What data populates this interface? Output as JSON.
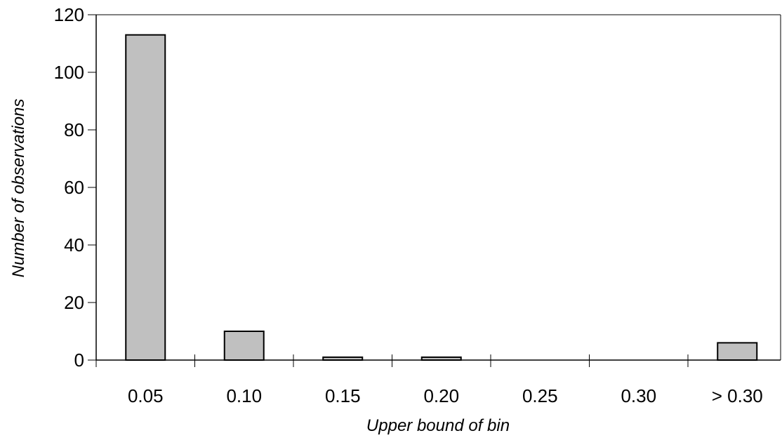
{
  "chart_data": {
    "type": "bar",
    "categories": [
      "0.05",
      "0.10",
      "0.15",
      "0.20",
      "0.25",
      "0.30",
      "> 0.30"
    ],
    "values": [
      113,
      10,
      1,
      1,
      0,
      0,
      6
    ],
    "xlabel": "Upper bound of bin",
    "ylabel": "Number of observations",
    "ylim": [
      0,
      120
    ],
    "yticks": [
      0,
      20,
      40,
      60,
      80,
      100,
      120
    ],
    "bar_color": "#c0c0c0",
    "grid": false,
    "legend": "none"
  }
}
